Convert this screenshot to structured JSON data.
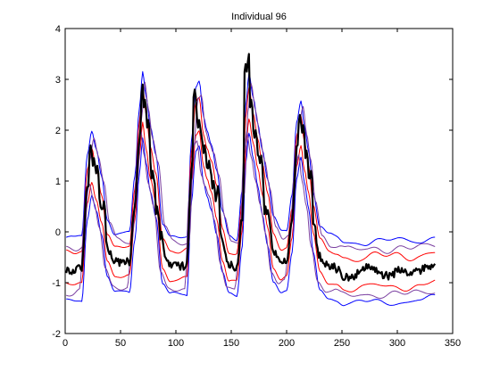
{
  "chart_data": {
    "type": "line",
    "title": "Individual 96",
    "xlabel": "",
    "ylabel": "",
    "xlim": [
      0,
      350
    ],
    "ylim": [
      -2,
      4
    ],
    "xticks": [
      0,
      50,
      100,
      150,
      200,
      250,
      300,
      350
    ],
    "yticks": [
      -2,
      -1,
      0,
      1,
      2,
      3,
      4
    ],
    "grid": false,
    "legend": "none",
    "x_range": [
      1,
      334
    ],
    "key_x": [
      0,
      8,
      15,
      20,
      24,
      28,
      33,
      38,
      45,
      52,
      58,
      63,
      67,
      70,
      73,
      77,
      82,
      88,
      95,
      103,
      110,
      114,
      118,
      121,
      125,
      128,
      132,
      137,
      142,
      148,
      155,
      160,
      163,
      166,
      170,
      174,
      178,
      183,
      188,
      195,
      200,
      205,
      209,
      213,
      216,
      220,
      224,
      230,
      238,
      245,
      252,
      260,
      270,
      280,
      290,
      300,
      310,
      320,
      334
    ],
    "mean": [
      -0.72,
      -0.75,
      -0.7,
      0.9,
      1.35,
      1.0,
      0.5,
      -0.3,
      -0.6,
      -0.62,
      -0.6,
      0.5,
      1.8,
      2.5,
      2.0,
      1.4,
      0.9,
      -0.4,
      -0.65,
      -0.68,
      -0.65,
      1.2,
      2.2,
      2.3,
      1.6,
      1.35,
      1.1,
      0.6,
      -0.2,
      -0.65,
      -0.7,
      0.3,
      1.9,
      2.5,
      2.0,
      1.5,
      1.0,
      0.4,
      -0.35,
      -0.6,
      -0.55,
      0.2,
      1.6,
      2.0,
      1.5,
      1.0,
      0.2,
      -0.5,
      -0.7,
      -0.72,
      -0.8,
      -0.82,
      -0.8,
      -0.75,
      -0.8,
      -0.75,
      -0.8,
      -0.75,
      -0.7
    ],
    "series": [
      {
        "name": "",
        "color": "#0000ff",
        "kind": "band",
        "offset": 0.6,
        "shift": 0
      },
      {
        "name": "",
        "color": "#ff0000",
        "kind": "band",
        "offset": 0.3,
        "shift": 0
      },
      {
        "name": "",
        "color": "#ff0000",
        "kind": "band",
        "offset": -0.3,
        "shift": 0
      },
      {
        "name": "",
        "color": "#0000ff",
        "kind": "band",
        "offset": -0.6,
        "shift": 0
      },
      {
        "name": "",
        "color": "#7a3fa0",
        "kind": "band",
        "offset": 0.45,
        "shift": 2
      },
      {
        "name": "",
        "color": "#7a3fa0",
        "kind": "band",
        "offset": -0.45,
        "shift": -2
      },
      {
        "name": "",
        "color": "#000000",
        "kind": "observed",
        "width": 2.2
      }
    ],
    "observed_spikes": [
      [
        23,
        1.7
      ],
      [
        26,
        1.45
      ],
      [
        29,
        1.3
      ],
      [
        35,
        0.6
      ],
      [
        70,
        2.9
      ],
      [
        72,
        2.6
      ],
      [
        75,
        2.2
      ],
      [
        79,
        1.2
      ],
      [
        83,
        0.5
      ],
      [
        87,
        0.0
      ],
      [
        117,
        2.8
      ],
      [
        121,
        2.2
      ],
      [
        126,
        1.7
      ],
      [
        130,
        1.4
      ],
      [
        134,
        1.0
      ],
      [
        138,
        0.9
      ],
      [
        163,
        3.3
      ],
      [
        166,
        3.5
      ],
      [
        168,
        2.6
      ],
      [
        172,
        2.0
      ],
      [
        177,
        1.5
      ],
      [
        181,
        0.5
      ],
      [
        212,
        2.3
      ],
      [
        215,
        2.1
      ],
      [
        218,
        1.6
      ],
      [
        222,
        1.2
      ]
    ]
  }
}
